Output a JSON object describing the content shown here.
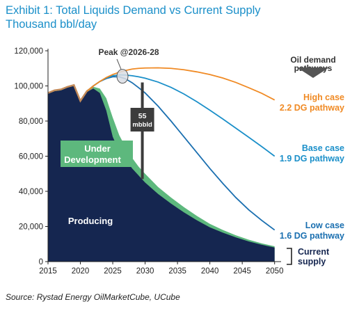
{
  "header": {
    "title_line1": "Exhibit 1: Total Liquids Demand vs Current Supply",
    "title_line2": "Thousand bbl/day"
  },
  "source": "Source: Rystad Energy OilMarketCube, UCube",
  "colors": {
    "producing": "#152650",
    "under_development": "#5db87d",
    "high_case": "#f08a24",
    "base_case": "#1a8fc9",
    "low_case": "#1a6fb0",
    "peak_line": "#c28a5a",
    "gap_bar": "#3c3c3c"
  },
  "chart_data": {
    "type": "area",
    "xlim": [
      2015,
      2051
    ],
    "ylim": [
      0,
      120000
    ],
    "x_ticks": [
      2015,
      2020,
      2025,
      2030,
      2035,
      2040,
      2045,
      2050
    ],
    "y_ticks": [
      0,
      20000,
      40000,
      60000,
      80000,
      100000,
      120000
    ],
    "y_tick_labels": [
      "0",
      "20,000",
      "40,000",
      "60,000",
      "80,000",
      "100,000",
      "120,000"
    ],
    "grid": false,
    "legend": "inline labels",
    "series": [
      {
        "name": "Producing",
        "kind": "area",
        "x": [
          2015,
          2016,
          2017,
          2018,
          2019,
          2020,
          2021,
          2022,
          2023,
          2024,
          2025,
          2026,
          2027,
          2028,
          2029,
          2030,
          2032,
          2034,
          2036,
          2038,
          2040,
          2042,
          2044,
          2046,
          2048,
          2050
        ],
        "y": [
          95500,
          97000,
          97500,
          99000,
          100000,
          91000,
          96500,
          98500,
          96000,
          86000,
          71000,
          63000,
          58000,
          53000,
          49000,
          45000,
          38500,
          33000,
          28000,
          23500,
          19500,
          16500,
          13800,
          11500,
          9600,
          8000
        ]
      },
      {
        "name": "Under Development",
        "kind": "area",
        "x": [
          2015,
          2016,
          2017,
          2018,
          2019,
          2020,
          2021,
          2022,
          2023,
          2024,
          2025,
          2026,
          2027,
          2028,
          2029,
          2030,
          2032,
          2034,
          2036,
          2038,
          2040,
          2042,
          2044,
          2046,
          2048,
          2050
        ],
        "y": [
          96000,
          97500,
          98000,
          99500,
          100500,
          91500,
          97000,
          99500,
          98500,
          93000,
          82000,
          72000,
          65000,
          59000,
          54000,
          50000,
          42500,
          36500,
          31000,
          26000,
          21500,
          18000,
          15000,
          12500,
          10400,
          8700
        ]
      },
      {
        "name": "High case",
        "label_line2": "2.2 DG pathway",
        "kind": "line",
        "x": [
          2021,
          2022,
          2023,
          2024,
          2025,
          2026,
          2027,
          2028,
          2029,
          2030,
          2032,
          2034,
          2036,
          2038,
          2040,
          2042,
          2044,
          2046,
          2048,
          2050
        ],
        "y": [
          97000,
          100000,
          102500,
          104800,
          106500,
          107800,
          108800,
          109600,
          110000,
          110200,
          110300,
          110000,
          109200,
          108000,
          106500,
          104500,
          102000,
          99000,
          95800,
          92000
        ]
      },
      {
        "name": "Base case",
        "label_line2": "1.9 DG pathway",
        "kind": "line",
        "x": [
          2021,
          2022,
          2023,
          2024,
          2025,
          2026,
          2027,
          2028,
          2029,
          2030,
          2032,
          2034,
          2036,
          2038,
          2040,
          2042,
          2044,
          2046,
          2048,
          2050
        ],
        "y": [
          97000,
          100000,
          102500,
          104500,
          105800,
          106300,
          106200,
          105800,
          105200,
          104400,
          102200,
          99200,
          95400,
          91000,
          86200,
          81200,
          76000,
          70800,
          65500,
          60000
        ]
      },
      {
        "name": "Low case",
        "label_line2": "1.6 DG pathway",
        "kind": "line",
        "x": [
          2021,
          2022,
          2023,
          2024,
          2025,
          2026,
          2027,
          2028,
          2029,
          2030,
          2032,
          2034,
          2036,
          2038,
          2040,
          2042,
          2044,
          2046,
          2048,
          2050
        ],
        "y": [
          97000,
          100000,
          102500,
          104200,
          105200,
          105200,
          104000,
          101800,
          99000,
          96000,
          88500,
          80000,
          71000,
          62000,
          53000,
          44500,
          36500,
          29500,
          23500,
          18000
        ]
      }
    ],
    "annotations": {
      "peak_label": "Peak @2026-28",
      "peak_x": 2026.5,
      "peak_y": 105500,
      "gap_value": "55",
      "gap_unit": "mbbld",
      "gap_x": 2030,
      "gap_y_top": 102000,
      "gap_y_bottom": 47000,
      "pathways_label_line1": "Oil demand",
      "pathways_label_line2": "pathways",
      "current_supply_line1": "Current",
      "current_supply_line2": "supply",
      "producing_label": "Producing",
      "under_dev_line1": "Under",
      "under_dev_line2": "Development"
    }
  }
}
